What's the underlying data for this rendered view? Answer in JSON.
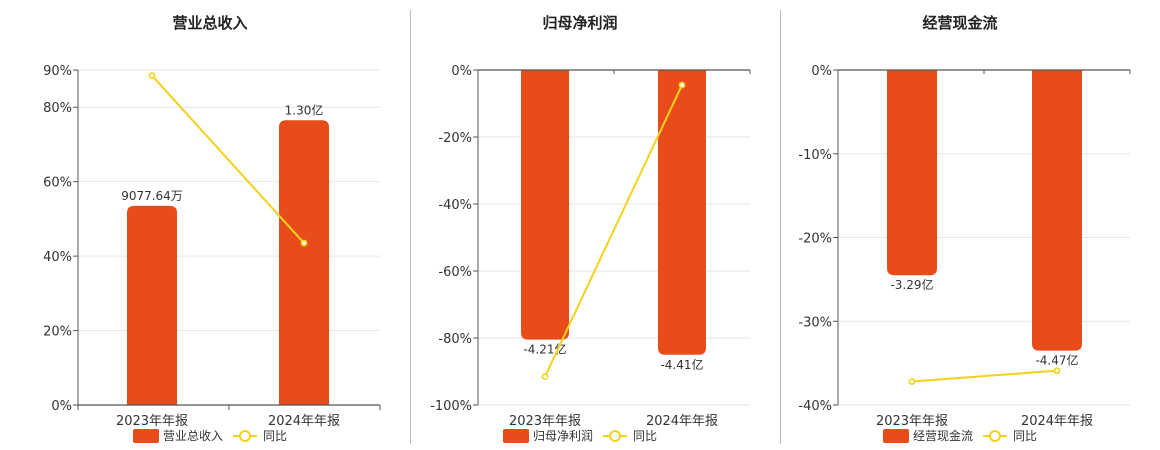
{
  "chart_data": [
    {
      "type": "bar",
      "title": "营业总收入",
      "categories": [
        "2023年年报",
        "2024年年报"
      ],
      "series": [
        {
          "name": "营业总收入",
          "type": "bar",
          "values": [
            53.5,
            76.5
          ],
          "labels": [
            "9077.64万",
            "1.30亿"
          ],
          "color": "#e84c1a"
        },
        {
          "name": "同比",
          "type": "line",
          "values": [
            88.5,
            43.5
          ],
          "color": "#f2d21b"
        }
      ],
      "yticks": [
        0,
        20,
        40,
        60,
        80,
        90
      ],
      "ytick_labels": [
        "0%",
        "20%",
        "40%",
        "60%",
        "80%",
        "90%"
      ],
      "ylim": [
        0,
        90
      ],
      "grid": true,
      "legend": "bottom"
    },
    {
      "type": "bar",
      "title": "归母净利润",
      "categories": [
        "2023年年报",
        "2024年年报"
      ],
      "series": [
        {
          "name": "归母净利润",
          "type": "bar",
          "values": [
            -80.5,
            -85.0
          ],
          "labels": [
            "-4.21亿",
            "-4.41亿"
          ],
          "color": "#e84c1a"
        },
        {
          "name": "同比",
          "type": "line",
          "values": [
            -91.5,
            -4.5
          ],
          "color": "#f2d21b"
        }
      ],
      "yticks": [
        0,
        -20,
        -40,
        -60,
        -80,
        -100
      ],
      "ytick_labels": [
        "0%",
        "-20%",
        "-40%",
        "-60%",
        "-80%",
        "-100%"
      ],
      "ylim": [
        -100,
        0
      ],
      "grid": true,
      "legend": "bottom"
    },
    {
      "type": "bar",
      "title": "经营现金流",
      "categories": [
        "2023年年报",
        "2024年年报"
      ],
      "series": [
        {
          "name": "经营现金流",
          "type": "bar",
          "values": [
            -24.5,
            -33.5
          ],
          "labels": [
            "-3.29亿",
            "-4.47亿"
          ],
          "color": "#e84c1a"
        },
        {
          "name": "同比",
          "type": "line",
          "values": [
            -37.2,
            -35.9
          ],
          "color": "#f2d21b"
        }
      ],
      "yticks": [
        0,
        -10,
        -20,
        -30,
        -40
      ],
      "ytick_labels": [
        "0%",
        "-10%",
        "-20%",
        "-30%",
        "-40%"
      ],
      "ylim": [
        -40,
        0
      ],
      "grid": true,
      "legend": "bottom"
    }
  ]
}
